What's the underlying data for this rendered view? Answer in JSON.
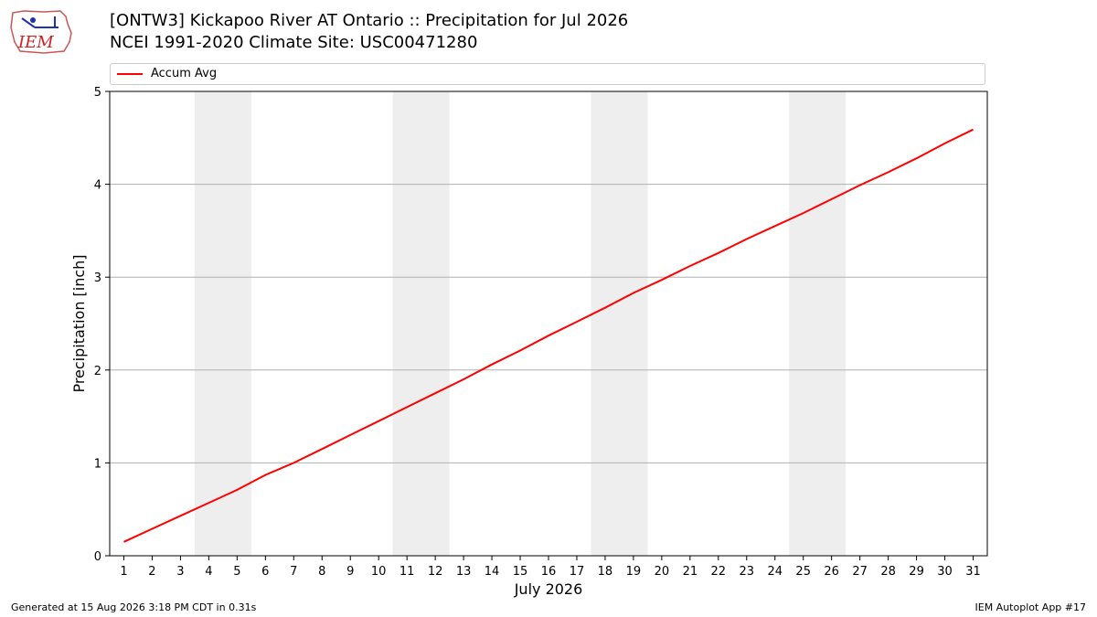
{
  "header": {
    "title_line1": "[ONTW3] Kickapoo River  AT Ontario :: Precipitation for Jul 2026",
    "title_line2": "NCEI 1991-2020 Climate Site: USC00471280",
    "logo_text": "IEM"
  },
  "footer": {
    "generated": "Generated at 15 Aug 2026 3:18 PM CDT in 0.31s",
    "app": "IEM Autoplot App #17"
  },
  "colors": {
    "line": "#ff0000",
    "weekend_band": "#eeeeee",
    "grid": "#b0b0b0"
  },
  "chart_data": {
    "type": "line",
    "xlabel": "July 2026",
    "ylabel": "Precipitation [inch]",
    "xlim": [
      0.5,
      31.5
    ],
    "ylim": [
      0,
      5.0
    ],
    "x_ticks": [
      1,
      2,
      3,
      4,
      5,
      6,
      7,
      8,
      9,
      10,
      11,
      12,
      13,
      14,
      15,
      16,
      17,
      18,
      19,
      20,
      21,
      22,
      23,
      24,
      25,
      26,
      27,
      28,
      29,
      30,
      31
    ],
    "y_ticks": [
      0,
      1,
      2,
      3,
      4,
      5
    ],
    "grid": "y-major",
    "legend_position": "top",
    "shaded_weekends": [
      [
        4,
        5
      ],
      [
        11,
        12
      ],
      [
        18,
        19
      ],
      [
        25,
        26
      ]
    ],
    "series": [
      {
        "name": "Accum Avg",
        "x": [
          1,
          2,
          3,
          4,
          5,
          6,
          7,
          8,
          9,
          10,
          11,
          12,
          13,
          14,
          15,
          16,
          17,
          18,
          19,
          20,
          21,
          22,
          23,
          24,
          25,
          26,
          27,
          28,
          29,
          30,
          31
        ],
        "values": [
          0.15,
          0.29,
          0.43,
          0.57,
          0.71,
          0.87,
          1.0,
          1.15,
          1.3,
          1.45,
          1.6,
          1.75,
          1.9,
          2.06,
          2.21,
          2.37,
          2.52,
          2.67,
          2.83,
          2.97,
          3.12,
          3.26,
          3.41,
          3.55,
          3.69,
          3.84,
          3.99,
          4.13,
          4.28,
          4.44,
          4.59
        ]
      }
    ]
  }
}
